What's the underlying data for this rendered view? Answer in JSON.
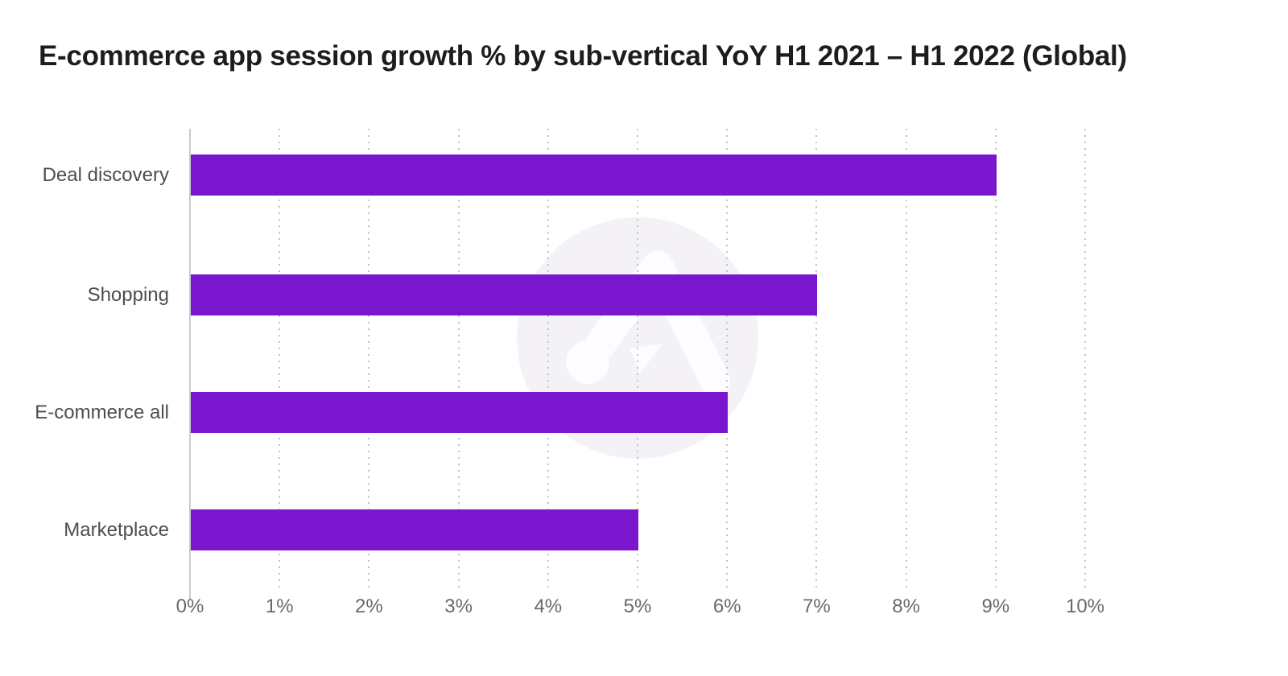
{
  "title": "E-commerce app session growth % by sub-vertical YoY H1 2021 – H1 2022 (Global)",
  "watermark": {
    "name": "adjust-logo-watermark",
    "circle_color": "#f4f2f7",
    "glyph_color": "#fdfdff"
  },
  "chart_data": {
    "type": "bar",
    "orientation": "horizontal",
    "title": "E-commerce app session growth % by sub-vertical YoY H1 2021 – H1 2022 (Global)",
    "categories": [
      "Deal discovery",
      "Shopping",
      "E-commerce all",
      "Marketplace"
    ],
    "values": [
      9,
      7,
      6,
      5
    ],
    "value_unit": "%",
    "xlabel": "",
    "ylabel": "",
    "xlim": [
      0,
      10
    ],
    "x_tick_step": 1,
    "x_tick_labels": [
      "0%",
      "1%",
      "2%",
      "3%",
      "4%",
      "5%",
      "6%",
      "7%",
      "8%",
      "9%",
      "10%"
    ],
    "grid": "vertical-dotted",
    "legend": "none",
    "colors": {
      "bar": "#7a17ce",
      "axis_line": "#cbcbcb",
      "gridline_dots": "#c3c3c3",
      "category_label": "#4d4d4d",
      "tick_label": "#696969",
      "title": "#1d1d1d"
    }
  }
}
